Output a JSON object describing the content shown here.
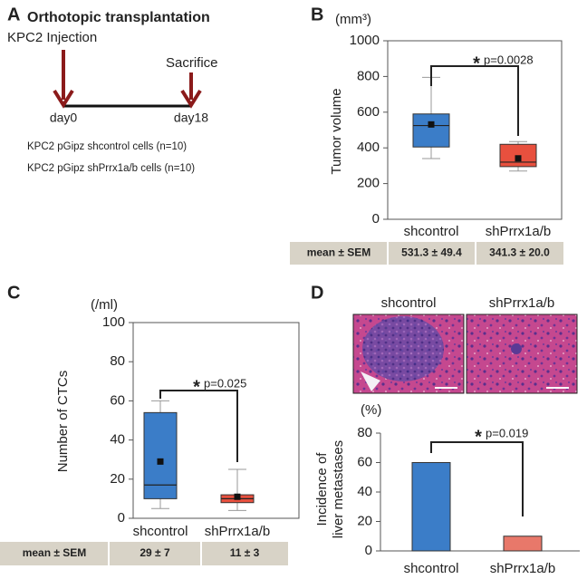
{
  "panels": {
    "a": {
      "label": "A",
      "title": "Orthotopic transplantation",
      "injection": "KPC2 Injection",
      "sacrifice": "Sacrifice",
      "start": "day0",
      "end": "day18",
      "groups": [
        "KPC2 pGipz shcontrol cells (n=10)",
        "KPC2 pGipz shPrrx1a/b cells (n=10)"
      ]
    },
    "b": {
      "label": "B"
    },
    "c": {
      "label": "C"
    },
    "d": {
      "label": "D"
    }
  },
  "chart_data": [
    {
      "type": "box",
      "unit": "(mm³)",
      "ylabel": "Tumor volume",
      "categories": [
        "shcontrol",
        "shPrrx1a/b"
      ],
      "boxes": [
        {
          "color": "#3b7dc8",
          "min": 340,
          "q1": 405,
          "median": 525,
          "q3": 590,
          "max": 795,
          "mean": 531.3
        },
        {
          "color": "#e8503e",
          "min": 270,
          "q1": 295,
          "median": 320,
          "q3": 420,
          "max": 435,
          "mean": 341.3
        }
      ],
      "ylim": [
        0,
        1000
      ],
      "yticks": [
        0,
        200,
        400,
        600,
        800,
        1000
      ],
      "star": "*",
      "p": "p=0.0028",
      "table": [
        "mean ±  SEM",
        "531.3 ±  49.4",
        "341.3 ±  20.0"
      ]
    },
    {
      "type": "box",
      "unit": "(/ml)",
      "ylabel": "Number of CTCs",
      "categories": [
        "shcontrol",
        "shPrrx1a/b"
      ],
      "boxes": [
        {
          "color": "#3b7dc8",
          "min": 5,
          "q1": 10,
          "median": 17,
          "q3": 54,
          "max": 60,
          "mean": 29
        },
        {
          "color": "#e8503e",
          "min": 4,
          "q1": 8,
          "median": 10,
          "q3": 12,
          "max": 25,
          "mean": 11
        }
      ],
      "ylim": [
        0,
        100
      ],
      "yticks": [
        0,
        20,
        40,
        60,
        80,
        100
      ],
      "star": "*",
      "p": "p=0.025",
      "table": [
        "mean ±  SEM",
        "29 ±  7",
        "11 ±  3"
      ]
    },
    {
      "type": "bar",
      "unit": "(%)",
      "ylabel": [
        "Incidence of",
        "liver metastases"
      ],
      "categories": [
        "shcontrol",
        "shPrrx1a/b"
      ],
      "values": [
        60,
        10
      ],
      "colors": [
        "#3b7dc8",
        "#e8786a"
      ],
      "ylim": [
        0,
        80
      ],
      "yticks": [
        0,
        20,
        40,
        60,
        80
      ],
      "star": "*",
      "p": "p=0.019",
      "image_titles": [
        "shcontrol",
        "shPrrx1a/b"
      ]
    }
  ]
}
